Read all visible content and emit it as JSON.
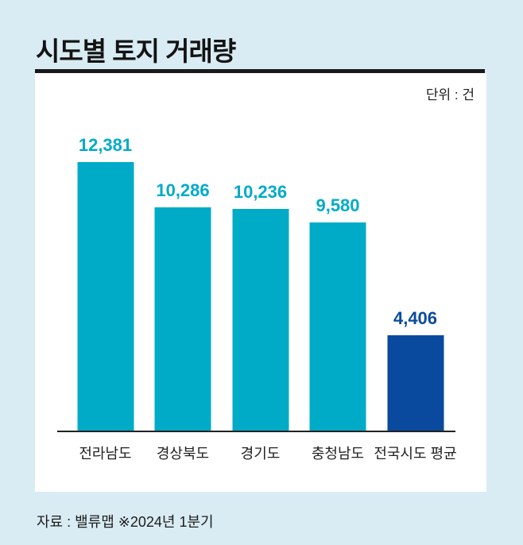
{
  "page": {
    "title": "시도별 토지 거래량",
    "unit_label": "단위 : 건",
    "source_note": "자료 : 밸류맵 ※2024년 1분기"
  },
  "colors": {
    "background": "#d9ecf3",
    "panel": "#ffffff",
    "teal": "#00abc8",
    "navy": "#0a4a9e",
    "title_text": "#131313",
    "axis": "#222222"
  },
  "chart_data": {
    "type": "bar",
    "title": "시도별 토지 거래량",
    "unit": "단위 : 건",
    "source": "자료 : 밸류맵 ※2024년 1분기",
    "categories": [
      "전라남도",
      "경상북도",
      "경기도",
      "충청남도",
      "전국시도 평균"
    ],
    "values": [
      12381,
      10286,
      10236,
      9580,
      4406
    ],
    "value_labels": [
      "12,381",
      "10,286",
      "10,236",
      "9,580",
      "4,406"
    ],
    "bar_colors": [
      "#00abc8",
      "#00abc8",
      "#00abc8",
      "#00abc8",
      "#0a4a9e"
    ],
    "xlabel": "",
    "ylabel": "",
    "ylim": [
      0,
      12381
    ],
    "grid": false,
    "legend": false
  }
}
